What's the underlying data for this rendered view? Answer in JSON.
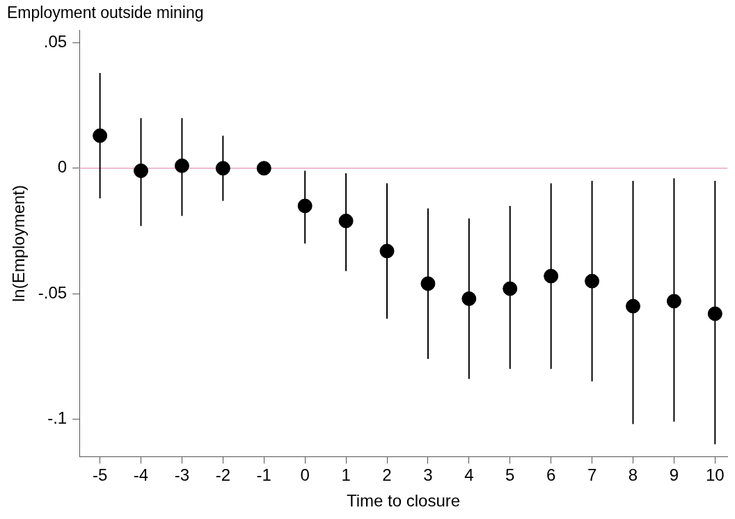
{
  "chart_data": {
    "type": "scatter",
    "title": "Employment outside mining",
    "xlabel": "Time to closure",
    "ylabel": "ln(Employment)",
    "x": [
      -5,
      -4,
      -3,
      -2,
      -1,
      0,
      1,
      2,
      3,
      4,
      5,
      6,
      7,
      8,
      9,
      10
    ],
    "series": [
      {
        "color": "#000000",
        "values": [
          0.013,
          -0.001,
          0.001,
          0.0,
          0.0,
          -0.015,
          -0.021,
          -0.033,
          -0.046,
          -0.052,
          -0.048,
          -0.043,
          -0.045,
          -0.055,
          -0.053,
          -0.058
        ],
        "errors": [
          [
            -0.012,
            0.038
          ],
          [
            -0.023,
            0.02
          ],
          [
            -0.019,
            0.02
          ],
          [
            -0.013,
            0.013
          ],
          null,
          [
            -0.03,
            -0.001
          ],
          [
            -0.041,
            -0.002
          ],
          [
            -0.06,
            -0.006
          ],
          [
            -0.076,
            -0.016
          ],
          [
            -0.084,
            -0.02
          ],
          [
            -0.08,
            -0.015
          ],
          [
            -0.08,
            -0.006
          ],
          [
            -0.085,
            -0.005
          ],
          [
            -0.102,
            -0.005
          ],
          [
            -0.101,
            -0.004
          ],
          [
            -0.11,
            -0.005
          ]
        ]
      }
    ],
    "marker": "circle",
    "xlim": [
      -5.5,
      10.3
    ],
    "xticks": [
      -5,
      -4,
      -3,
      -2,
      -1,
      0,
      1,
      2,
      3,
      4,
      5,
      6,
      7,
      8,
      9,
      10
    ],
    "ylim": [
      -0.115,
      0.055
    ],
    "yticks": [
      {
        "value": -0.1,
        "label": "-.1"
      },
      {
        "value": -0.05,
        "label": "-.05"
      },
      {
        "value": 0,
        "label": "0"
      },
      {
        "value": 0.05,
        "label": ".05"
      }
    ],
    "ref_lines": [
      {
        "axis": "y",
        "value": 0,
        "color": "#e8a6c8"
      }
    ]
  }
}
